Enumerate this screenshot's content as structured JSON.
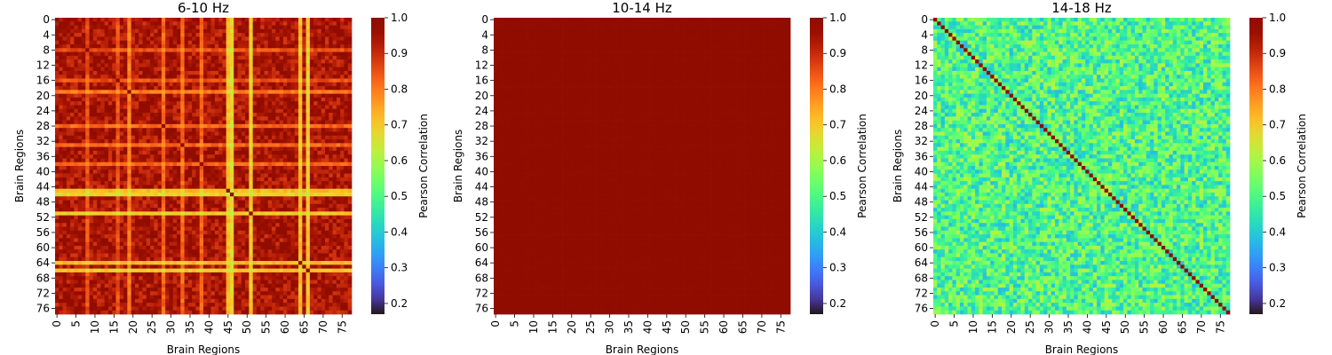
{
  "chart_data": [
    {
      "type": "heatmap",
      "title": "6-10 Hz",
      "xlabel": "Brain Regions",
      "ylabel": "Brain Regions",
      "colorbar_label": "Pearson Correlation",
      "n_regions": 78,
      "x_ticks": [
        0,
        5,
        10,
        15,
        20,
        25,
        30,
        35,
        40,
        45,
        50,
        55,
        60,
        65,
        70,
        75
      ],
      "y_ticks": [
        0,
        4,
        8,
        12,
        16,
        20,
        24,
        28,
        32,
        36,
        40,
        44,
        48,
        52,
        56,
        60,
        64,
        68,
        72,
        76
      ],
      "clim": [
        0.17,
        1.0
      ],
      "colorbar_ticks": [
        1.0,
        0.9,
        0.8,
        0.7,
        0.6,
        0.5,
        0.4,
        0.3,
        0.2
      ],
      "pattern": {
        "base_range": [
          0.88,
          1.0
        ],
        "low_regions": [
          {
            "region": 45,
            "value": 0.72
          },
          {
            "region": 46,
            "value": 0.68
          },
          {
            "region": 51,
            "value": 0.7
          },
          {
            "region": 64,
            "value": 0.72
          },
          {
            "region": 66,
            "value": 0.7
          },
          {
            "region": 19,
            "value": 0.8
          },
          {
            "region": 28,
            "value": 0.82
          },
          {
            "region": 33,
            "value": 0.82
          },
          {
            "region": 38,
            "value": 0.83
          },
          {
            "region": 8,
            "value": 0.85
          },
          {
            "region": 16,
            "value": 0.85
          }
        ]
      }
    },
    {
      "type": "heatmap",
      "title": "10-14 Hz",
      "xlabel": "Brain Regions",
      "ylabel": "Brain Regions",
      "colorbar_label": "Pearson Correlation",
      "n_regions": 78,
      "x_ticks": [
        0,
        5,
        10,
        15,
        20,
        25,
        30,
        35,
        40,
        45,
        50,
        55,
        60,
        65,
        70,
        75
      ],
      "y_ticks": [
        0,
        4,
        8,
        12,
        16,
        20,
        24,
        28,
        32,
        36,
        40,
        44,
        48,
        52,
        56,
        60,
        64,
        68,
        72,
        76
      ],
      "clim": [
        0.17,
        1.0
      ],
      "colorbar_ticks": [
        1.0,
        0.9,
        0.8,
        0.7,
        0.6,
        0.5,
        0.4,
        0.3,
        0.2
      ],
      "pattern": {
        "base_range": [
          0.99,
          1.0
        ],
        "low_regions": []
      }
    },
    {
      "type": "heatmap",
      "title": "14-18 Hz",
      "xlabel": "Brain Regions",
      "ylabel": "Brain Regions",
      "colorbar_label": "Pearson Correlation",
      "n_regions": 78,
      "x_ticks": [
        0,
        5,
        10,
        15,
        20,
        25,
        30,
        35,
        40,
        45,
        50,
        55,
        60,
        65,
        70,
        75
      ],
      "y_ticks": [
        0,
        4,
        8,
        12,
        16,
        20,
        24,
        28,
        32,
        36,
        40,
        44,
        48,
        52,
        56,
        60,
        64,
        68,
        72,
        76
      ],
      "clim": [
        0.17,
        1.0
      ],
      "colorbar_ticks": [
        1.0,
        0.9,
        0.8,
        0.7,
        0.6,
        0.5,
        0.4,
        0.3,
        0.2
      ],
      "diagonal": 1.0,
      "pattern": {
        "base_range": [
          0.38,
          0.62
        ],
        "low_regions": []
      }
    }
  ]
}
